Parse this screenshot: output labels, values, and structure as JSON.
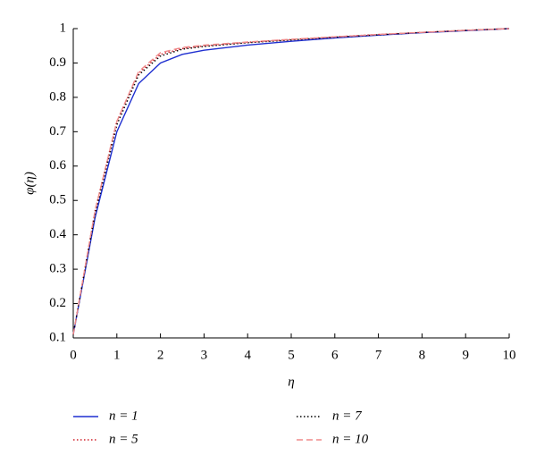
{
  "chart_data": {
    "type": "line",
    "x_label": "η",
    "y_label": "φ(η)",
    "x": [
      0,
      0.5,
      1,
      1.5,
      2,
      2.5,
      3,
      4,
      5,
      6,
      7,
      8,
      9,
      10
    ],
    "series": [
      {
        "name": "n = 1",
        "color": "#1f2fd0",
        "dash": "solid",
        "values": [
          0.11,
          0.45,
          0.7,
          0.84,
          0.9,
          0.925,
          0.937,
          0.952,
          0.963,
          0.973,
          0.981,
          0.988,
          0.994,
          1.0
        ]
      },
      {
        "name": "n = 5",
        "color": "#d0202a",
        "dash": "dotted",
        "values": [
          0.11,
          0.47,
          0.73,
          0.87,
          0.925,
          0.942,
          0.95,
          0.96,
          0.968,
          0.976,
          0.983,
          0.989,
          0.995,
          1.0
        ]
      },
      {
        "name": "n = 7",
        "color": "#000000",
        "dash": "dotted",
        "values": [
          0.11,
          0.46,
          0.72,
          0.865,
          0.92,
          0.94,
          0.948,
          0.959,
          0.967,
          0.975,
          0.982,
          0.989,
          0.995,
          1.0
        ]
      },
      {
        "name": "n = 10",
        "color": "#f08a8a",
        "dash": "dashed",
        "values": [
          0.11,
          0.47,
          0.73,
          0.875,
          0.93,
          0.945,
          0.952,
          0.961,
          0.969,
          0.976,
          0.983,
          0.989,
          0.995,
          1.0
        ]
      }
    ],
    "xlim": [
      0,
      10
    ],
    "ylim": [
      0.1,
      1
    ],
    "xticks": [
      0,
      1,
      2,
      3,
      4,
      5,
      6,
      7,
      8,
      9,
      10
    ],
    "yticks": [
      0.1,
      0.2,
      0.3,
      0.4,
      0.5,
      0.6,
      0.7,
      0.8,
      0.9,
      1
    ],
    "grid": false,
    "legend": "bottom"
  }
}
